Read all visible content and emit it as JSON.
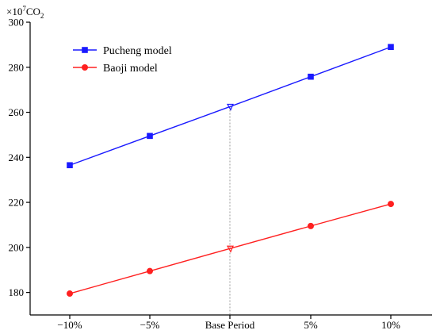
{
  "chart_data": {
    "type": "line",
    "title": "",
    "xlabel": "",
    "ylabel": "",
    "yunit": {
      "prefix": "×10",
      "exponent": "7",
      "base": "CO",
      "subscript": "2"
    },
    "categories": [
      "−10%",
      "−5%",
      "Base Period",
      "5%",
      "10%"
    ],
    "ylim": [
      170,
      300
    ],
    "yticks": [
      180,
      200,
      220,
      240,
      260,
      280,
      300
    ],
    "grid": false,
    "legend_position": "top-left",
    "base_marker_index": 2,
    "series": [
      {
        "name": "Pucheng model",
        "color": "#1a1aff",
        "marker": "square",
        "values": [
          236.5,
          249.5,
          262.5,
          275.8,
          289
        ]
      },
      {
        "name": "Baoji model",
        "color": "#ff2020",
        "marker": "circle",
        "values": [
          179.5,
          189.5,
          199.5,
          209.5,
          219.3
        ]
      }
    ]
  }
}
